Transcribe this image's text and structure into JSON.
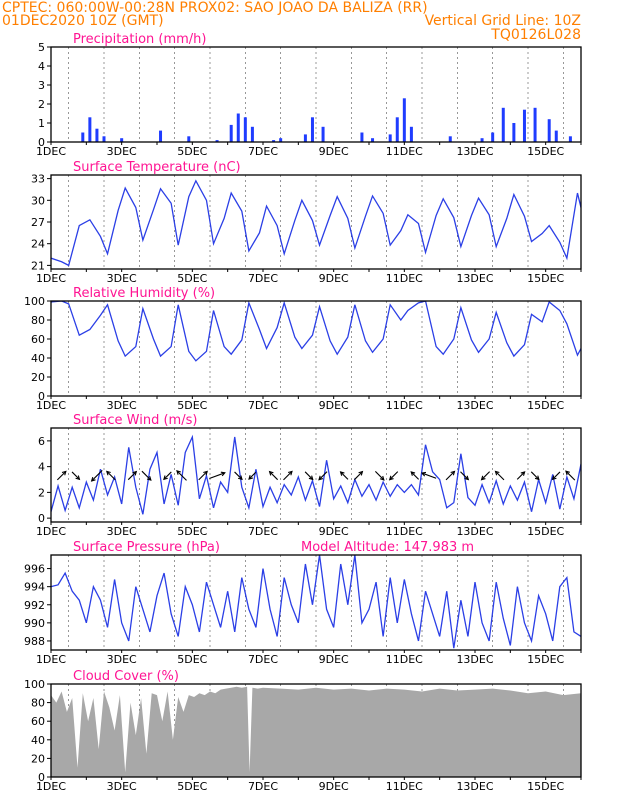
{
  "header": {
    "left_line1": "CPTEC:   060:00W-00:28N   PROX02: SAO JOAO DA BALIZA (RR)",
    "left_line2": "01DEC2020 10Z (GMT)",
    "right_line2": "Vertical Grid Line: 10Z",
    "right_line3": "TQ0126L028"
  },
  "colors": {
    "header_text": "#ff7f00",
    "panel_title": "#ff1493",
    "series_line": "#2b3fe6",
    "precip_bar": "#1f3cff",
    "cloud_fill": "#a8a8a8",
    "wind_arrow": "#000000",
    "frame": "#000000"
  },
  "x_ticks": [
    "1DEC",
    "3DEC",
    "5DEC",
    "7DEC",
    "9DEC",
    "11DEC",
    "13DEC",
    "15DEC"
  ],
  "chart_data": [
    {
      "id": "precip",
      "type": "bar",
      "title": "Precipitation (mm/h)",
      "ylim": [
        0,
        5
      ],
      "yticks": [
        "0",
        "1",
        "2",
        "3",
        "4",
        "5"
      ],
      "x_days": [
        1.9,
        2.1,
        2.3,
        2.5,
        3.0,
        4.1,
        4.9,
        5.7,
        6.1,
        6.3,
        6.5,
        6.7,
        7.3,
        7.5,
        8.2,
        8.4,
        8.7,
        9.8,
        10.1,
        10.6,
        10.8,
        11.0,
        11.2,
        12.3,
        13.2,
        13.5,
        13.8,
        14.1,
        14.4,
        14.7,
        15.1,
        15.3,
        15.7
      ],
      "values": [
        0.5,
        1.3,
        0.7,
        0.3,
        0.2,
        0.6,
        0.3,
        0.1,
        0.9,
        1.5,
        1.3,
        0.8,
        0.1,
        0.2,
        0.4,
        1.3,
        0.8,
        0.5,
        0.2,
        0.4,
        1.3,
        2.3,
        0.8,
        0.3,
        0.2,
        0.5,
        1.8,
        1.0,
        1.7,
        1.8,
        1.2,
        0.6,
        0.3
      ]
    },
    {
      "id": "temperature",
      "type": "line",
      "title": "Surface Temperature (nC)",
      "ylim": [
        20.5,
        33.5
      ],
      "yticks": [
        "21",
        "24",
        "27",
        "30",
        "33"
      ],
      "x_days": [
        1.0,
        1.3,
        1.5,
        1.8,
        2.1,
        2.4,
        2.6,
        2.9,
        3.1,
        3.4,
        3.6,
        3.9,
        4.1,
        4.4,
        4.6,
        4.9,
        5.1,
        5.4,
        5.6,
        5.9,
        6.1,
        6.4,
        6.6,
        6.9,
        7.1,
        7.4,
        7.6,
        7.9,
        8.1,
        8.4,
        8.6,
        8.9,
        9.1,
        9.4,
        9.6,
        9.9,
        10.1,
        10.4,
        10.6,
        10.9,
        11.1,
        11.4,
        11.6,
        11.9,
        12.1,
        12.4,
        12.6,
        12.9,
        13.1,
        13.4,
        13.6,
        13.9,
        14.1,
        14.4,
        14.6,
        14.9,
        15.1,
        15.4,
        15.6,
        15.9,
        16.0
      ],
      "values": [
        22.0,
        21.5,
        21.0,
        26.5,
        27.3,
        25.0,
        22.6,
        28.6,
        31.7,
        29.0,
        24.5,
        28.7,
        31.6,
        29.6,
        23.8,
        30.5,
        32.7,
        30.0,
        24.0,
        27.5,
        31.0,
        28.5,
        23.0,
        25.5,
        29.2,
        26.5,
        22.6,
        27.2,
        30.0,
        27.2,
        23.8,
        27.9,
        30.5,
        27.5,
        23.4,
        27.8,
        30.6,
        28.2,
        23.8,
        25.8,
        28.0,
        26.8,
        22.8,
        27.9,
        30.2,
        27.6,
        23.6,
        27.9,
        30.3,
        28.0,
        23.6,
        27.5,
        30.8,
        27.8,
        24.3,
        25.4,
        26.5,
        24.2,
        22.0,
        31.0,
        29.0
      ]
    },
    {
      "id": "humidity",
      "type": "line",
      "title": "Relative Humidity (%)",
      "ylim": [
        0,
        100
      ],
      "yticks": [
        "0",
        "20",
        "40",
        "60",
        "80",
        "100"
      ],
      "x_days": [
        1.0,
        1.3,
        1.5,
        1.8,
        2.1,
        2.4,
        2.6,
        2.9,
        3.1,
        3.4,
        3.6,
        3.9,
        4.1,
        4.4,
        4.6,
        4.9,
        5.1,
        5.4,
        5.6,
        5.9,
        6.1,
        6.4,
        6.6,
        6.9,
        7.1,
        7.4,
        7.6,
        7.9,
        8.1,
        8.4,
        8.6,
        8.9,
        9.1,
        9.4,
        9.6,
        9.9,
        10.1,
        10.4,
        10.6,
        10.9,
        11.1,
        11.4,
        11.6,
        11.9,
        12.1,
        12.4,
        12.6,
        12.9,
        13.1,
        13.4,
        13.6,
        13.9,
        14.1,
        14.4,
        14.6,
        14.9,
        15.1,
        15.4,
        15.6,
        15.9,
        16.0
      ],
      "values": [
        99,
        100,
        97,
        64,
        70,
        85,
        96,
        58,
        42,
        52,
        92,
        60,
        42,
        52,
        96,
        47,
        37,
        47,
        90,
        52,
        44,
        59,
        98,
        70,
        50,
        72,
        98,
        62,
        50,
        64,
        94,
        58,
        44,
        62,
        96,
        58,
        46,
        60,
        96,
        80,
        90,
        98,
        100,
        52,
        44,
        60,
        93,
        59,
        46,
        60,
        88,
        56,
        42,
        54,
        86,
        78,
        99,
        90,
        76,
        43,
        50
      ]
    },
    {
      "id": "wind",
      "type": "line",
      "title": "Surface Wind (m/s)",
      "ylim": [
        -0.3,
        7.0
      ],
      "yticks": [
        "0",
        "2",
        "4",
        "6"
      ],
      "x_days": [
        1.0,
        1.2,
        1.4,
        1.6,
        1.8,
        2.0,
        2.2,
        2.4,
        2.6,
        2.8,
        3.0,
        3.2,
        3.4,
        3.6,
        3.8,
        4.0,
        4.2,
        4.4,
        4.6,
        4.8,
        5.0,
        5.2,
        5.4,
        5.6,
        5.8,
        6.0,
        6.2,
        6.4,
        6.6,
        6.8,
        7.0,
        7.2,
        7.4,
        7.6,
        7.8,
        8.0,
        8.2,
        8.4,
        8.6,
        8.8,
        9.0,
        9.2,
        9.4,
        9.6,
        9.8,
        10.0,
        10.2,
        10.4,
        10.6,
        10.8,
        11.0,
        11.2,
        11.4,
        11.6,
        11.8,
        12.0,
        12.2,
        12.4,
        12.6,
        12.8,
        13.0,
        13.2,
        13.4,
        13.6,
        13.8,
        14.0,
        14.2,
        14.4,
        14.6,
        14.8,
        15.0,
        15.2,
        15.4,
        15.6,
        15.8,
        16.0
      ],
      "values": [
        0.5,
        2.5,
        0.6,
        2.4,
        0.8,
        2.8,
        1.4,
        3.8,
        1.8,
        3.2,
        1.1,
        5.5,
        2.4,
        0.3,
        3.8,
        5.1,
        1.1,
        3.4,
        1.0,
        5.1,
        6.3,
        1.5,
        3.3,
        0.8,
        2.8,
        2.0,
        6.3,
        2.4,
        0.8,
        3.8,
        0.9,
        2.4,
        1.2,
        2.6,
        1.8,
        3.2,
        1.4,
        2.9,
        0.9,
        4.5,
        1.5,
        2.5,
        1.2,
        3.0,
        1.7,
        2.6,
        1.4,
        2.8,
        1.7,
        2.6,
        2.0,
        2.6,
        1.8,
        5.7,
        3.6,
        3.0,
        0.8,
        1.2,
        5.0,
        1.6,
        1.0,
        2.6,
        1.2,
        2.9,
        1.1,
        2.5,
        1.4,
        2.8,
        0.5,
        3.0,
        1.2,
        3.4,
        0.7,
        3.2,
        1.5,
        4.2
      ],
      "arrows": {
        "x_days": [
          1.3,
          1.7,
          2.3,
          2.7,
          3.3,
          3.7,
          4.3,
          4.7,
          5.3,
          5.7,
          6.3,
          6.7,
          7.3,
          7.7,
          8.3,
          8.7,
          9.3,
          9.7,
          10.3,
          10.7,
          11.3,
          11.7,
          12.3,
          12.7,
          13.3,
          13.7,
          14.3,
          14.7,
          15.3,
          15.7
        ],
        "speed": [
          2.0,
          1.5,
          3.0,
          2.0,
          1.8,
          2.2,
          1.5,
          2.5,
          2.0,
          3.5,
          1.5,
          1.2,
          1.8,
          2.0,
          1.6,
          1.8,
          1.5,
          1.8,
          2.0,
          1.8,
          1.5,
          3.0,
          2.0,
          1.7,
          1.8,
          2.0,
          1.5,
          1.6,
          1.5,
          2.2
        ],
        "direction_deg": [
          45,
          135,
          225,
          315,
          45,
          135,
          225,
          315,
          45,
          70,
          135,
          225,
          315,
          45,
          135,
          225,
          315,
          45,
          135,
          225,
          315,
          290,
          45,
          135,
          225,
          315,
          45,
          135,
          225,
          315
        ]
      }
    },
    {
      "id": "pressure",
      "type": "line",
      "title": "Surface Pressure (hPa)",
      "annotation": "Model Altitude: 147.983 m",
      "ylim": [
        987,
        997.5
      ],
      "yticks": [
        "988",
        "990",
        "992",
        "994",
        "996"
      ],
      "x_days": [
        1.0,
        1.2,
        1.4,
        1.6,
        1.8,
        2.0,
        2.2,
        2.4,
        2.6,
        2.8,
        3.0,
        3.2,
        3.4,
        3.6,
        3.8,
        4.0,
        4.2,
        4.4,
        4.6,
        4.8,
        5.0,
        5.2,
        5.4,
        5.6,
        5.8,
        6.0,
        6.2,
        6.4,
        6.6,
        6.8,
        7.0,
        7.2,
        7.4,
        7.6,
        7.8,
        8.0,
        8.2,
        8.4,
        8.6,
        8.8,
        9.0,
        9.2,
        9.4,
        9.6,
        9.8,
        10.0,
        10.2,
        10.4,
        10.6,
        10.8,
        11.0,
        11.2,
        11.4,
        11.6,
        11.8,
        12.0,
        12.2,
        12.4,
        12.6,
        12.8,
        13.0,
        13.2,
        13.4,
        13.6,
        13.8,
        14.0,
        14.2,
        14.4,
        14.6,
        14.8,
        15.0,
        15.2,
        15.4,
        15.6,
        15.8,
        16.0
      ],
      "values": [
        994.0,
        994.2,
        995.5,
        993.5,
        992.5,
        990.0,
        994.0,
        992.5,
        989.5,
        994.8,
        990.0,
        988.0,
        994.0,
        991.5,
        989.0,
        993.0,
        995.5,
        991.0,
        988.5,
        994.0,
        992.0,
        989.0,
        994.5,
        992.0,
        989.5,
        993.5,
        989.0,
        995.0,
        991.5,
        989.5,
        996.0,
        991.5,
        988.5,
        995.0,
        992.0,
        990.0,
        996.5,
        992.0,
        997.5,
        991.5,
        989.5,
        996.5,
        992.0,
        997.5,
        990.0,
        991.5,
        994.5,
        988.5,
        995.0,
        990.0,
        994.8,
        991.0,
        988.0,
        993.5,
        991.0,
        988.5,
        993.5,
        987.2,
        992.5,
        988.5,
        994.5,
        990.0,
        988.0,
        994.5,
        990.5,
        987.5,
        994.0,
        990.0,
        988.0,
        993.0,
        991.0,
        988.0,
        994.0,
        995.0,
        989.0,
        988.5
      ]
    },
    {
      "id": "cloud",
      "type": "area",
      "title": "Cloud Cover (%)",
      "ylim": [
        0,
        100
      ],
      "yticks": [
        "0",
        "20",
        "40",
        "60",
        "80",
        "100"
      ],
      "x_days": [
        1.0,
        1.15,
        1.3,
        1.45,
        1.6,
        1.75,
        1.9,
        2.05,
        2.2,
        2.35,
        2.5,
        2.65,
        2.8,
        2.95,
        3.1,
        3.25,
        3.4,
        3.55,
        3.7,
        3.85,
        4.0,
        4.15,
        4.3,
        4.45,
        4.6,
        4.75,
        4.9,
        5.05,
        5.2,
        5.35,
        5.5,
        5.65,
        5.8,
        5.95,
        6.1,
        6.25,
        6.4,
        6.55,
        6.62,
        6.7,
        6.85,
        7.0,
        7.5,
        8.0,
        8.5,
        9.0,
        9.5,
        10.0,
        10.5,
        11.0,
        11.5,
        12.0,
        12.5,
        13.0,
        13.5,
        14.0,
        14.5,
        15.0,
        15.5,
        16.0
      ],
      "values": [
        88,
        80,
        92,
        70,
        85,
        10,
        90,
        60,
        85,
        30,
        92,
        75,
        50,
        88,
        5,
        80,
        45,
        85,
        25,
        90,
        88,
        60,
        92,
        40,
        86,
        70,
        88,
        86,
        90,
        88,
        92,
        90,
        94,
        95,
        96,
        97,
        96,
        97,
        5,
        96,
        95,
        96,
        95,
        94,
        96,
        94,
        95,
        93,
        95,
        94,
        92,
        95,
        93,
        94,
        95,
        93,
        90,
        92,
        88,
        90
      ]
    }
  ]
}
